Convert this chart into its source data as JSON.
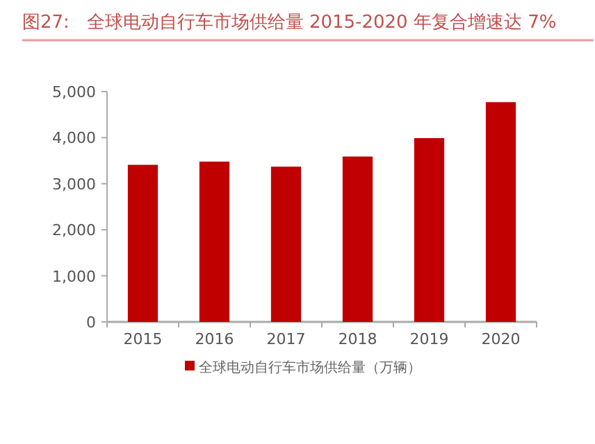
{
  "chart_data": {
    "type": "bar",
    "title": "图27:   全球电动自行车市场供给量 2015-2020 年复合增速达 7%",
    "categories": [
      "2015",
      "2016",
      "2017",
      "2018",
      "2019",
      "2020"
    ],
    "series": [
      {
        "name": "全球电动自行车市场供给量（万辆）",
        "color": "#c00000",
        "values": [
          3410,
          3480,
          3370,
          3590,
          3990,
          4770
        ]
      }
    ],
    "ylim": [
      0,
      5000
    ],
    "yticks": [
      0,
      {
        "value": 1000,
        "label": "1,000"
      },
      {
        "value": 2000,
        "label": "2,000"
      },
      {
        "value": 3000,
        "label": "3,000"
      },
      {
        "value": 4000,
        "label": "4,000"
      },
      {
        "value": 5000,
        "label": "5,000"
      }
    ],
    "grid": false,
    "legend": "bottom"
  }
}
